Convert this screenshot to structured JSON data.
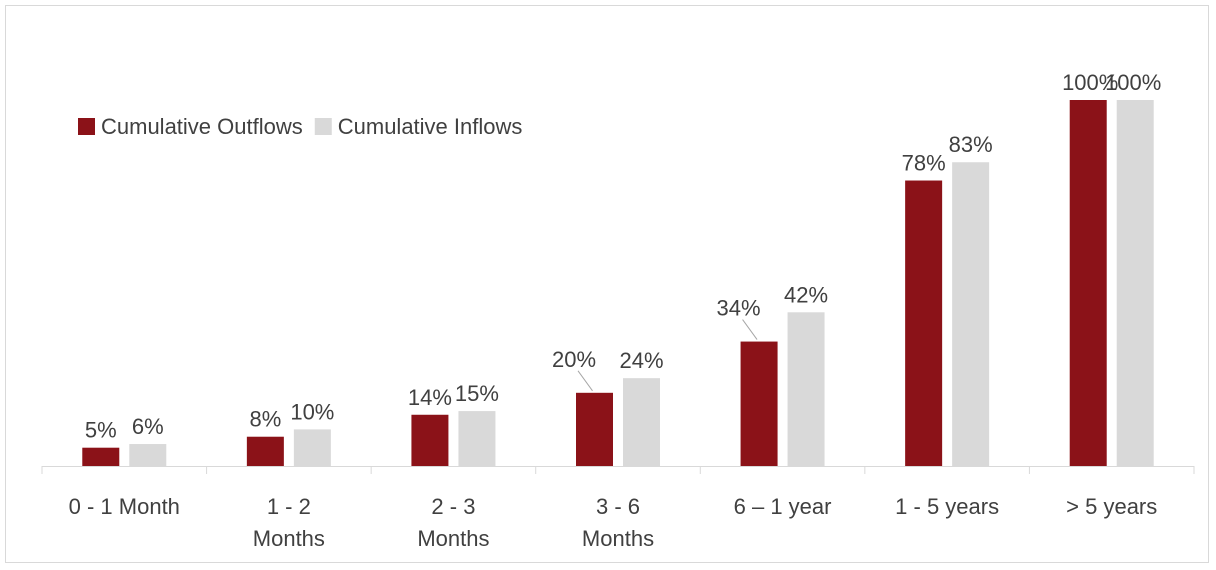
{
  "chart_data": {
    "type": "bar",
    "categories": [
      [
        "0 - 1 Month"
      ],
      [
        "1 - 2",
        "Months"
      ],
      [
        "2 - 3",
        "Months"
      ],
      [
        "3 - 6",
        "Months"
      ],
      [
        "6 – 1 year"
      ],
      [
        "1 - 5 years"
      ],
      [
        "> 5 years"
      ]
    ],
    "series": [
      {
        "name": "Cumulative Outflows",
        "values": [
          5,
          8,
          14,
          20,
          34,
          78,
          100
        ],
        "labels": [
          "5%",
          "8%",
          "14%",
          "20%",
          "34%",
          "78%",
          "100%"
        ],
        "color": "#8b1218"
      },
      {
        "name": "Cumulative Inflows",
        "values": [
          6,
          10,
          15,
          24,
          42,
          83,
          100
        ],
        "labels": [
          "6%",
          "10%",
          "15%",
          "24%",
          "42%",
          "83%",
          "100%"
        ],
        "color": "#d9d9d9"
      }
    ],
    "ylim": [
      0,
      100
    ],
    "value_unit": "%",
    "grid": false,
    "legend": "top-left"
  }
}
